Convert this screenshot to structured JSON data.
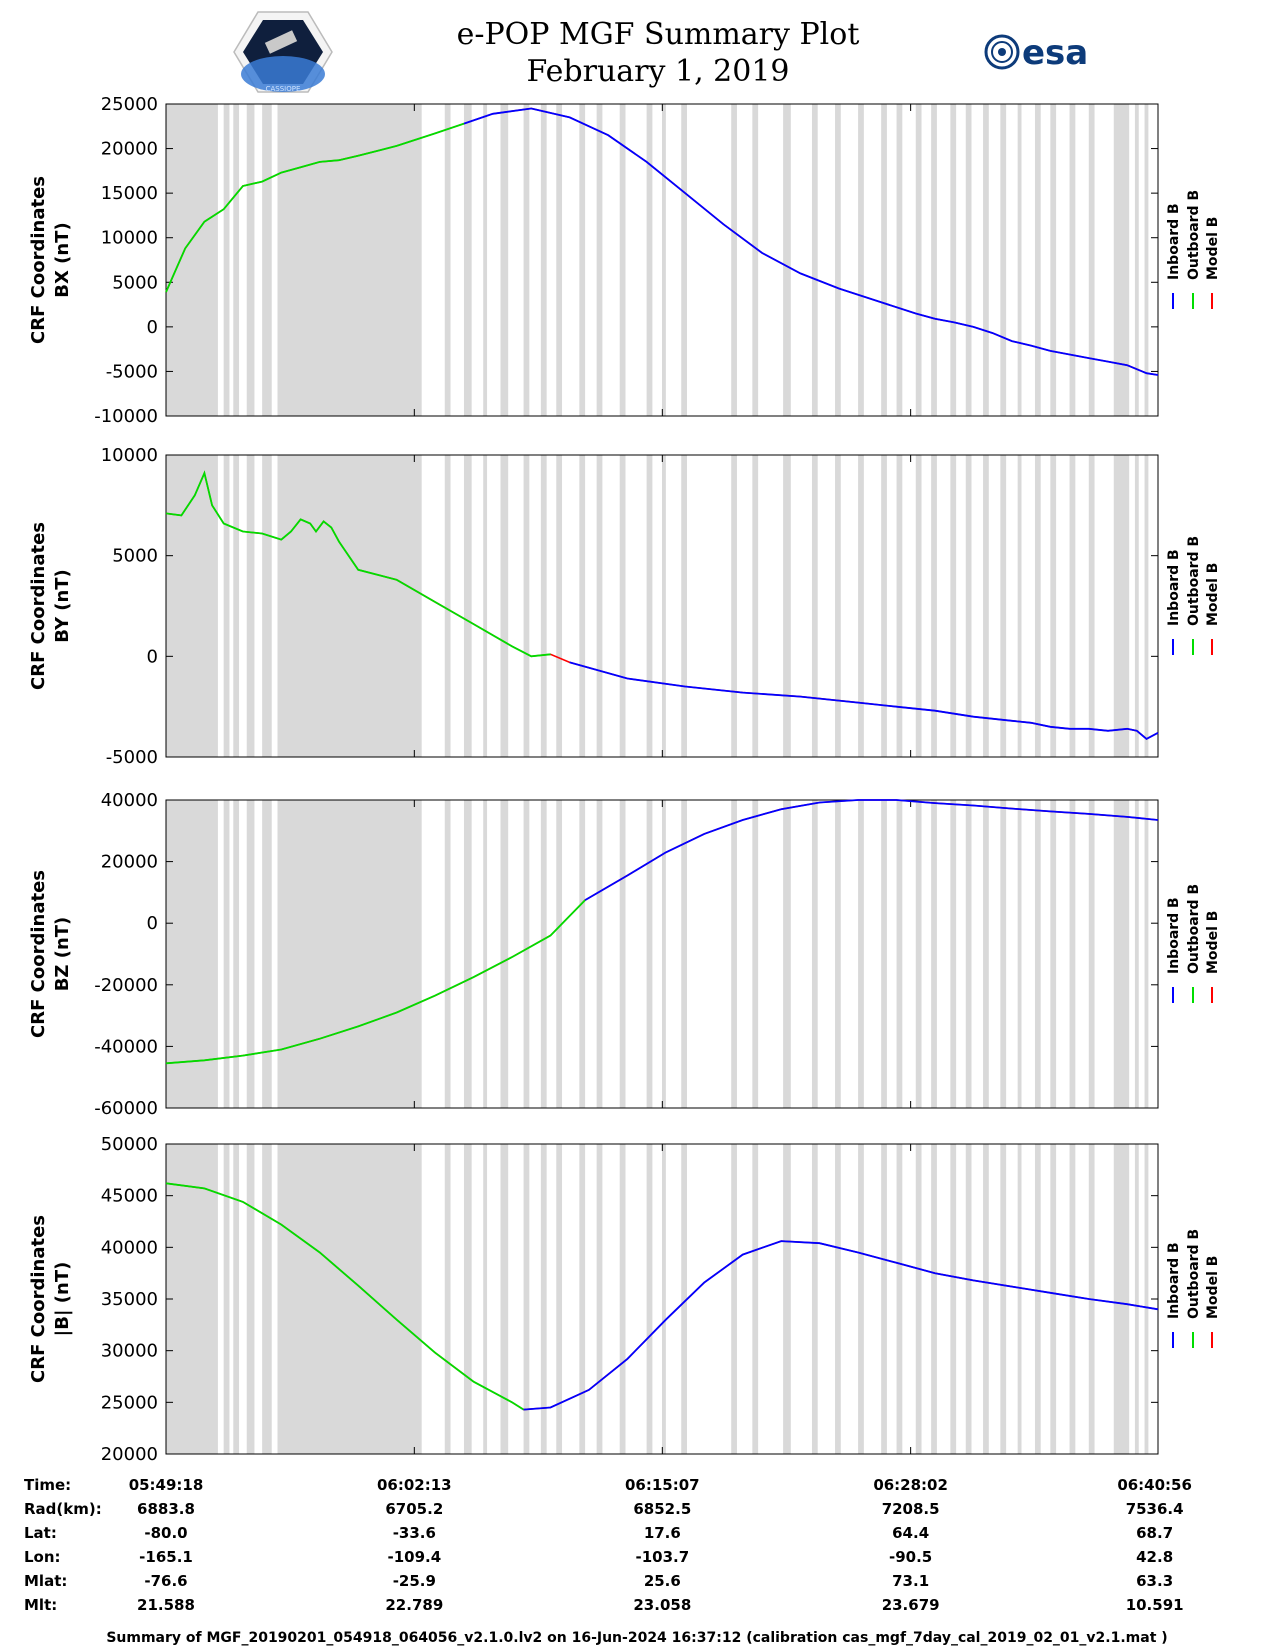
{
  "header": {
    "title_line1": "e-POP MGF Summary Plot",
    "title_line2": "February 1, 2019",
    "esa_logo_text": "esa",
    "mission_badge_text": "CASSIOPE"
  },
  "colors": {
    "inboard": "#0000ff",
    "outboard": "#00dd00",
    "model": "#ff0000",
    "shade": "#d9d9d9"
  },
  "legend": {
    "inboard": "Inboard B",
    "outboard": "Outboard B",
    "model": "Model B"
  },
  "chart_data": [
    {
      "type": "line",
      "ylabel_line1": "CRF Coordinates",
      "ylabel_line2": "BX (nT)",
      "ylim": [
        -10000,
        25000
      ],
      "yticks": [
        "25000",
        "20000",
        "15000",
        "10000",
        "5000",
        "0",
        "-5000",
        "-10000"
      ],
      "ytick_values": [
        25000,
        20000,
        15000,
        10000,
        5000,
        0,
        -5000,
        -10000
      ],
      "switch_minute": 15.5,
      "series": {
        "x_minutes": [
          0,
          1,
          2,
          3,
          4,
          5,
          6,
          7,
          8,
          9,
          10,
          12,
          14,
          15.5,
          17,
          19,
          21,
          23,
          25,
          27,
          29,
          31,
          33,
          35,
          37,
          39,
          40,
          41,
          42,
          43,
          44,
          45,
          46,
          47,
          48,
          49,
          50,
          51,
          51.6
        ],
        "values": [
          3900,
          8800,
          11800,
          13200,
          15800,
          16300,
          17300,
          17900,
          18500,
          18700,
          19200,
          20300,
          21700,
          22800,
          23900,
          24500,
          23500,
          21500,
          18500,
          15000,
          11500,
          8300,
          6000,
          4300,
          2900,
          1500,
          900,
          500,
          0,
          -700,
          -1600,
          -2100,
          -2700,
          -3100,
          -3500,
          -3900,
          -4300,
          -5200,
          -5400
        ]
      }
    },
    {
      "type": "line",
      "ylabel_line1": "CRF Coordinates",
      "ylabel_line2": "BY (nT)",
      "ylim": [
        -5000,
        10000
      ],
      "yticks": [
        "10000",
        "5000",
        "0",
        "-5000"
      ],
      "ytick_values": [
        10000,
        5000,
        0,
        -5000
      ],
      "switch_minute": 20.3,
      "series": {
        "x_minutes": [
          0,
          0.8,
          1.5,
          2.0,
          2.4,
          3.0,
          4.0,
          5.0,
          6.0,
          6.5,
          7.0,
          7.5,
          7.8,
          8.2,
          8.6,
          9,
          10,
          12,
          14,
          16,
          18,
          19,
          20,
          21,
          24,
          27,
          30,
          33,
          36,
          38,
          40,
          42,
          44,
          45,
          46,
          47,
          48,
          49,
          50,
          50.5,
          51,
          51.6
        ],
        "values": [
          7100,
          7000,
          8000,
          9100,
          7500,
          6600,
          6200,
          6100,
          5800,
          6200,
          6800,
          6600,
          6200,
          6700,
          6400,
          5700,
          4300,
          3800,
          2700,
          1600,
          500,
          0,
          100,
          -300,
          -1100,
          -1500,
          -1800,
          -2000,
          -2300,
          -2500,
          -2700,
          -3000,
          -3200,
          -3300,
          -3500,
          -3600,
          -3600,
          -3700,
          -3600,
          -3700,
          -4100,
          -3800
        ]
      }
    },
    {
      "type": "line",
      "ylabel_line1": "CRF Coordinates",
      "ylabel_line2": "BZ (nT)",
      "ylim": [
        -60000,
        40000
      ],
      "yticks": [
        "40000",
        "20000",
        "0",
        "-20000",
        "-40000",
        "-60000"
      ],
      "ytick_values": [
        40000,
        20000,
        0,
        -20000,
        -40000,
        -60000
      ],
      "switch_minute": 21.8,
      "series": {
        "x_minutes": [
          0,
          2,
          4,
          6,
          8,
          10,
          12,
          14,
          16,
          18,
          20,
          21.8,
          24,
          26,
          28,
          30,
          32,
          34,
          36,
          38,
          40,
          42,
          44,
          46,
          48,
          50,
          51.6
        ],
        "values": [
          -45500,
          -44500,
          -43000,
          -41000,
          -37500,
          -33500,
          -29000,
          -23500,
          -17500,
          -11000,
          -4000,
          7500,
          15500,
          23000,
          29000,
          33500,
          37000,
          39200,
          40000,
          40000,
          39000,
          38200,
          37200,
          36300,
          35500,
          34500,
          33500
        ]
      }
    },
    {
      "type": "line",
      "ylabel_line1": "CRF Coordinates",
      "ylabel_line2": "|B| (nT)",
      "ylim": [
        20000,
        50000
      ],
      "yticks": [
        "50000",
        "45000",
        "40000",
        "35000",
        "30000",
        "25000",
        "20000"
      ],
      "ytick_values": [
        50000,
        45000,
        40000,
        35000,
        30000,
        25000,
        20000
      ],
      "switch_minute": 18.6,
      "series": {
        "x_minutes": [
          0,
          2,
          4,
          6,
          8,
          10,
          12,
          14,
          16,
          18,
          18.6,
          20,
          22,
          24,
          26,
          28,
          30,
          32,
          34,
          36,
          38,
          40,
          42,
          44,
          46,
          48,
          50,
          51.6
        ],
        "values": [
          46200,
          45700,
          44400,
          42200,
          39500,
          36300,
          33000,
          29800,
          27000,
          25000,
          24300,
          24500,
          26200,
          29200,
          33000,
          36600,
          39300,
          40600,
          40400,
          39500,
          38500,
          37500,
          36800,
          36200,
          35600,
          35000,
          34500,
          34000
        ]
      }
    }
  ],
  "gaps_minutes": [
    [
      0,
      2.7
    ],
    [
      3.0,
      3.3
    ],
    [
      3.5,
      3.8
    ],
    [
      4.2,
      4.6
    ],
    [
      5.0,
      5.5
    ],
    [
      5.8,
      13.3
    ],
    [
      14.5,
      14.8
    ],
    [
      15.5,
      15.9
    ],
    [
      16.5,
      16.7
    ],
    [
      17.4,
      17.8
    ],
    [
      18.6,
      18.9
    ],
    [
      19.5,
      19.8
    ],
    [
      20.3,
      20.6
    ],
    [
      21.5,
      21.8
    ],
    [
      22.4,
      22.7
    ],
    [
      23.6,
      23.9
    ],
    [
      25.0,
      25.3
    ],
    [
      25.8,
      26.0
    ],
    [
      26.8,
      27.1
    ],
    [
      29.4,
      29.7
    ],
    [
      30.5,
      30.8
    ],
    [
      32.1,
      32.5
    ],
    [
      33.6,
      33.9
    ],
    [
      34.8,
      35.1
    ],
    [
      36.0,
      36.3
    ],
    [
      37.2,
      37.5
    ],
    [
      38.0,
      38.3
    ],
    [
      39.0,
      39.3
    ],
    [
      39.8,
      40.1
    ],
    [
      40.8,
      41.1
    ],
    [
      41.6,
      41.9
    ],
    [
      42.5,
      42.8
    ],
    [
      43.4,
      43.7
    ],
    [
      44.3,
      44.5
    ],
    [
      45.2,
      45.5
    ],
    [
      46.0,
      46.3
    ],
    [
      47.0,
      47.3
    ],
    [
      48.0,
      48.3
    ],
    [
      49.3,
      50.1
    ],
    [
      50.4,
      50.6
    ],
    [
      50.9,
      51.1
    ]
  ],
  "info_table": {
    "row_labels": [
      "Time:",
      "Rad(km):",
      "Lat:",
      "Lon:",
      "Mlat:",
      "Mlt:"
    ],
    "columns": [
      [
        "05:49:18",
        "6883.8",
        "-80.0",
        "-165.1",
        "-76.6",
        "21.588"
      ],
      [
        "06:02:13",
        "6705.2",
        "-33.6",
        "-109.4",
        "-25.9",
        "22.789"
      ],
      [
        "06:15:07",
        "6852.5",
        "17.6",
        "-103.7",
        "25.6",
        "23.058"
      ],
      [
        "06:28:02",
        "7208.5",
        "64.4",
        "-90.5",
        "73.1",
        "23.679"
      ],
      [
        "06:40:56",
        "7536.4",
        "68.7",
        "42.8",
        "63.3",
        "10.591"
      ]
    ]
  },
  "footer": "Summary of MGF_20190201_054918_064056_v2.1.0.lv2 on 16-Jun-2024 16:37:12 (calibration cas_mgf_7day_cal_2019_02_01_v2.1.mat )"
}
